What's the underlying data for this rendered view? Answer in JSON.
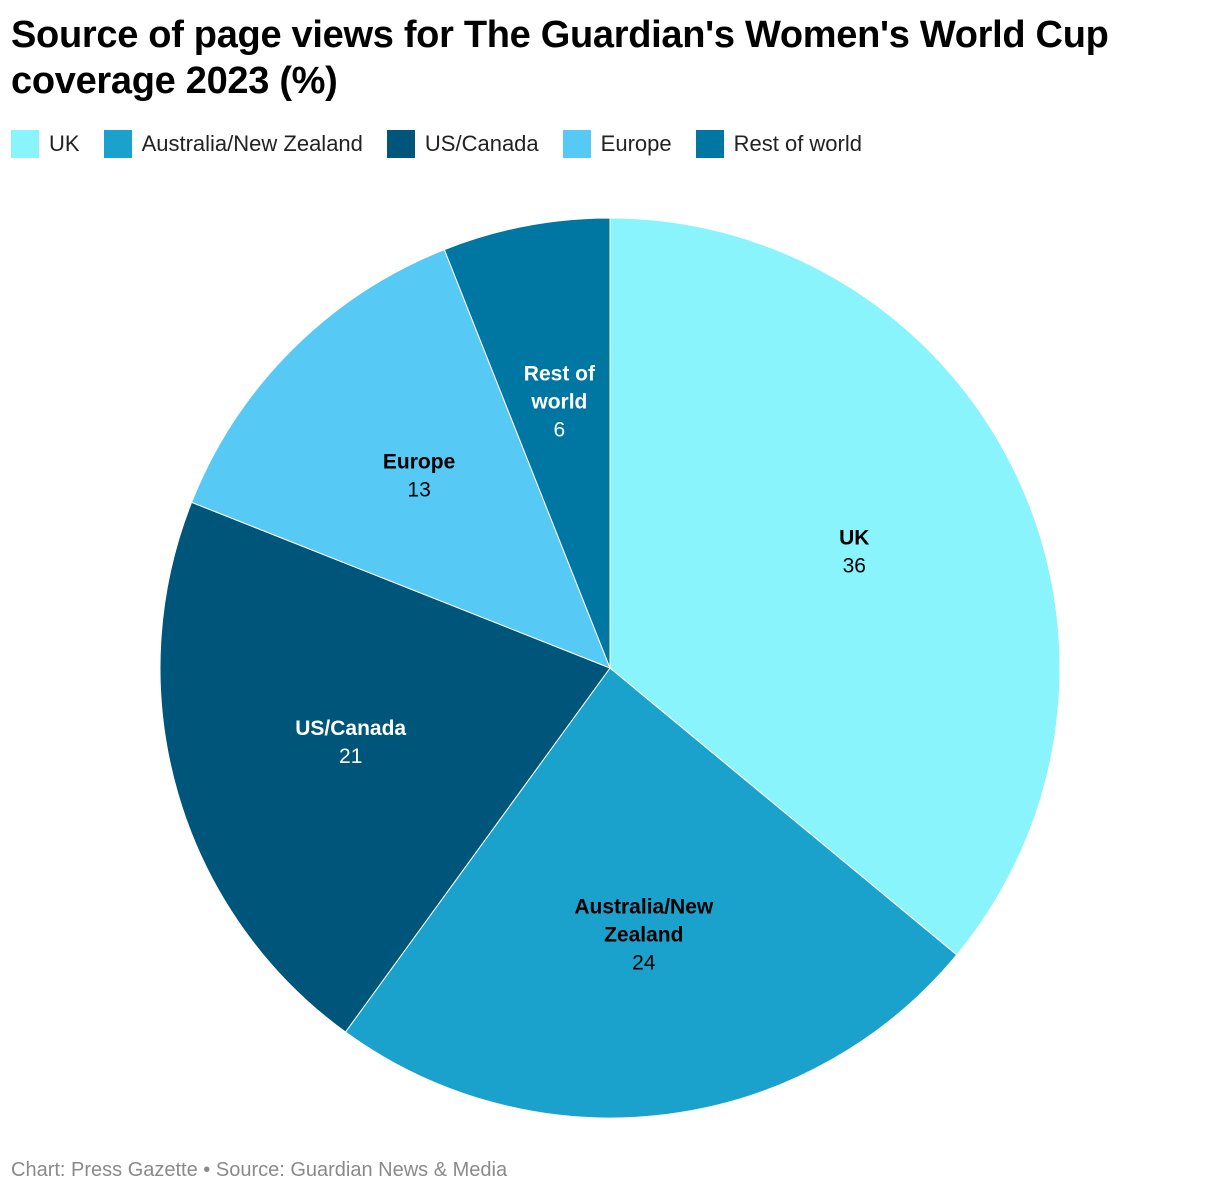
{
  "chart_data": {
    "type": "pie",
    "title": "Source of page views for The Guardian's Women's World Cup coverage 2023 (%)",
    "categories": [
      "UK",
      "Australia/New Zealand",
      "US/Canada",
      "Europe",
      "Rest of world"
    ],
    "values": [
      36,
      24,
      21,
      13,
      6
    ],
    "colors": [
      "#8AF4FD",
      "#1AA1CC",
      "#00557A",
      "#57C9F5",
      "#0076A3"
    ],
    "label_colors": [
      "#000000",
      "#000000",
      "#FFFFFF",
      "#000000",
      "#FFFFFF"
    ],
    "slice_labels": [
      [
        "UK"
      ],
      [
        "Australia/New",
        "Zealand"
      ],
      [
        "US/Canada"
      ],
      [
        "Europe"
      ],
      [
        "Rest of",
        "world"
      ]
    ],
    "legend_position": "top-left",
    "grid": false
  },
  "footer": {
    "credit": "Chart: Press Gazette • Source: Guardian News & Media"
  }
}
